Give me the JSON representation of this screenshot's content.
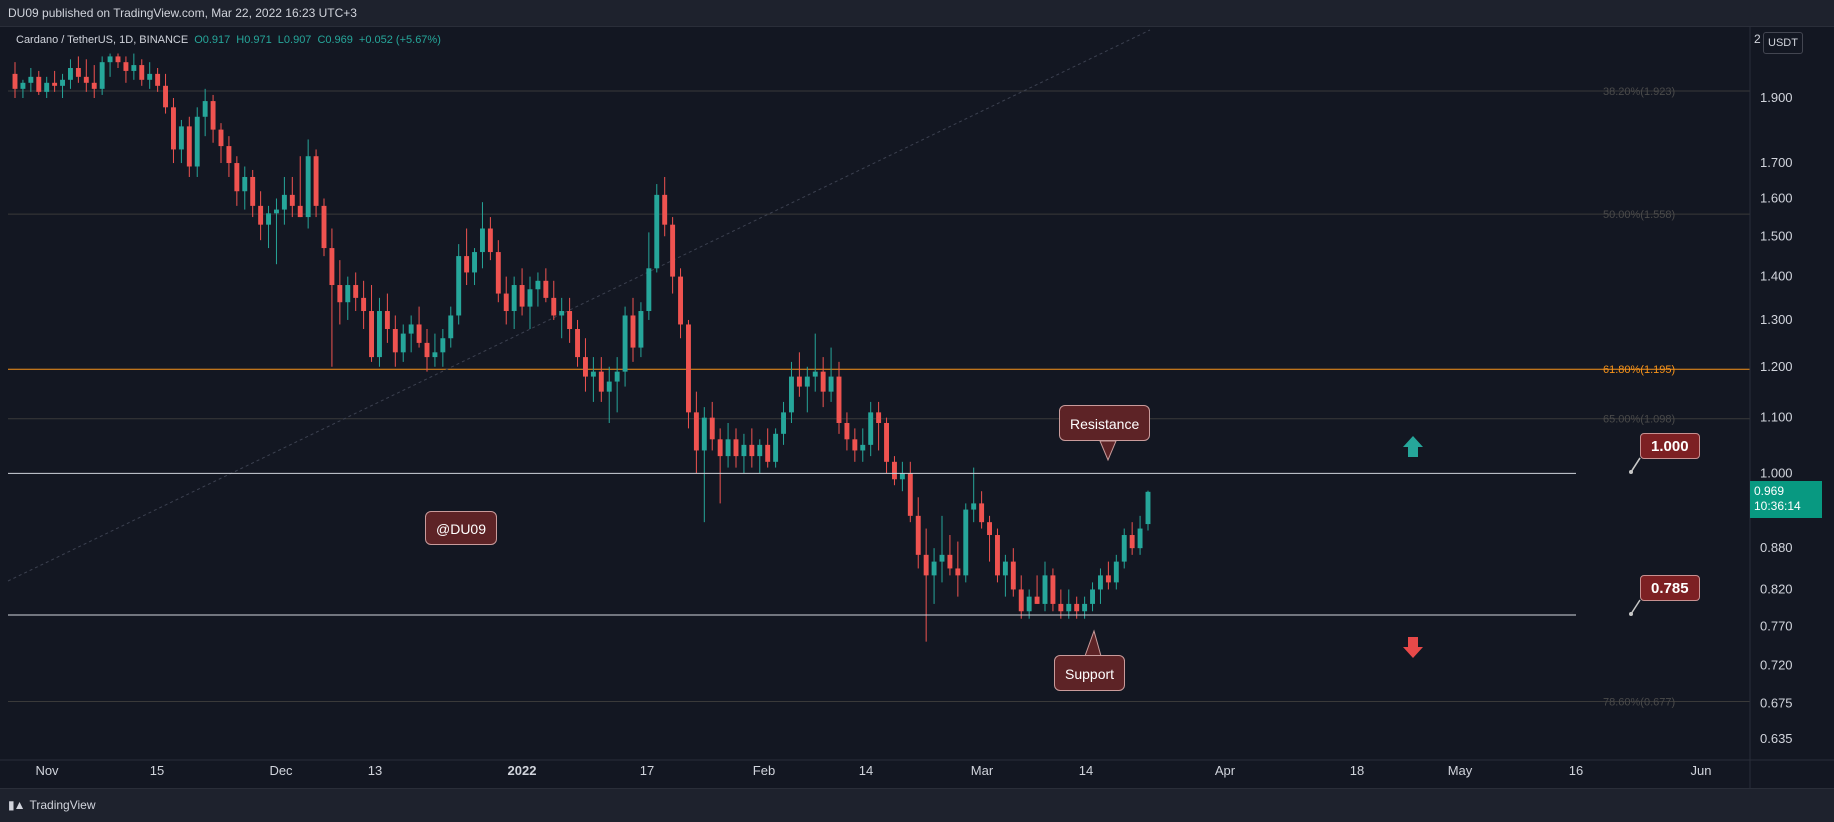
{
  "header": {
    "publish_line": "DU09 published on TradingView.com, Mar 22, 2022 16:23 UTC+3"
  },
  "legend": {
    "symbol": "Cardano / TetherUS, 1D, BINANCE",
    "open": "O0.917",
    "high": "H0.971",
    "low": "L0.907",
    "close": "C0.969",
    "change": "+0.052 (+5.67%)"
  },
  "axis": {
    "currency": "USDT",
    "corner_digit": "2"
  },
  "current_price": {
    "price": "0.969",
    "countdown": "10:36:14"
  },
  "annotations": {
    "resistance": "Resistance",
    "support": "Support",
    "watermark": "@DU09",
    "level_high": "1.000",
    "level_low": "0.785"
  },
  "footer": {
    "brand": "TradingView"
  },
  "colors": {
    "background": "#131722",
    "up": "#26a69a",
    "down": "#ef5350",
    "fib_618": "#f7931a",
    "level_line": "#d1d4dc"
  },
  "chart_data": {
    "type": "candlestick",
    "title": "",
    "x_tick_labels": [
      "Nov",
      "15",
      "Dec",
      "13",
      "2022",
      "17",
      "Feb",
      "14",
      "Mar",
      "14",
      "Apr",
      "18",
      "May",
      "16",
      "Jun"
    ],
    "y_tick_labels": [
      "1.900",
      "1.700",
      "1.600",
      "1.500",
      "1.400",
      "1.300",
      "1.200",
      "1.100",
      "1.000",
      "0.880",
      "0.820",
      "0.770",
      "0.720",
      "0.675",
      "0.635"
    ],
    "y_tick_values": [
      1.9,
      1.7,
      1.6,
      1.5,
      1.4,
      1.3,
      1.2,
      1.1,
      1.0,
      0.88,
      0.82,
      0.77,
      0.72,
      0.675,
      0.635
    ],
    "ylim": [
      0.61,
      2.05
    ],
    "y_scale": "log",
    "fib_levels": [
      {
        "label": "38.20%(1.923)",
        "value": 1.923
      },
      {
        "label": "50.00%(1.558)",
        "value": 1.558
      },
      {
        "label": "61.80%(1.195)",
        "value": 1.195
      },
      {
        "label": "65.00%(1.098)",
        "value": 1.098
      },
      {
        "label": "78.60%(0.677)",
        "value": 0.677
      }
    ],
    "horizontal_levels": [
      1.0,
      0.785
    ],
    "candles": [
      [
        1.98,
        2.02,
        1.9,
        1.93
      ],
      [
        1.93,
        1.96,
        1.9,
        1.95
      ],
      [
        1.95,
        2.0,
        1.92,
        1.97
      ],
      [
        1.97,
        1.99,
        1.91,
        1.92
      ],
      [
        1.92,
        1.97,
        1.9,
        1.95
      ],
      [
        1.95,
        1.99,
        1.92,
        1.94
      ],
      [
        1.94,
        1.98,
        1.9,
        1.96
      ],
      [
        1.96,
        2.03,
        1.93,
        2.0
      ],
      [
        2.0,
        2.04,
        1.95,
        1.97
      ],
      [
        1.97,
        2.03,
        1.92,
        1.95
      ],
      [
        1.95,
        2.01,
        1.9,
        1.93
      ],
      [
        1.93,
        2.04,
        1.91,
        2.02
      ],
      [
        2.02,
        2.05,
        1.97,
        2.04
      ],
      [
        2.04,
        2.05,
        2.0,
        2.02
      ],
      [
        2.02,
        2.04,
        1.95,
        1.99
      ],
      [
        1.99,
        2.05,
        1.96,
        2.01
      ],
      [
        2.01,
        2.03,
        1.94,
        1.96
      ],
      [
        1.96,
        2.02,
        1.93,
        1.98
      ],
      [
        1.98,
        2.0,
        1.92,
        1.94
      ],
      [
        1.94,
        1.98,
        1.85,
        1.87
      ],
      [
        1.87,
        1.9,
        1.7,
        1.74
      ],
      [
        1.74,
        1.83,
        1.7,
        1.81
      ],
      [
        1.81,
        1.84,
        1.66,
        1.69
      ],
      [
        1.69,
        1.87,
        1.66,
        1.84
      ],
      [
        1.84,
        1.93,
        1.78,
        1.89
      ],
      [
        1.89,
        1.91,
        1.76,
        1.8
      ],
      [
        1.8,
        1.82,
        1.7,
        1.75
      ],
      [
        1.75,
        1.78,
        1.66,
        1.7
      ],
      [
        1.7,
        1.72,
        1.58,
        1.62
      ],
      [
        1.62,
        1.69,
        1.57,
        1.66
      ],
      [
        1.66,
        1.68,
        1.55,
        1.58
      ],
      [
        1.58,
        1.62,
        1.49,
        1.53
      ],
      [
        1.53,
        1.58,
        1.47,
        1.56
      ],
      [
        1.56,
        1.6,
        1.43,
        1.57
      ],
      [
        1.57,
        1.66,
        1.53,
        1.61
      ],
      [
        1.61,
        1.66,
        1.55,
        1.58
      ],
      [
        1.58,
        1.72,
        1.55,
        1.55
      ],
      [
        1.55,
        1.77,
        1.52,
        1.72
      ],
      [
        1.72,
        1.74,
        1.55,
        1.58
      ],
      [
        1.58,
        1.6,
        1.45,
        1.47
      ],
      [
        1.47,
        1.52,
        1.2,
        1.38
      ],
      [
        1.38,
        1.44,
        1.29,
        1.34
      ],
      [
        1.34,
        1.4,
        1.3,
        1.38
      ],
      [
        1.38,
        1.41,
        1.32,
        1.35
      ],
      [
        1.35,
        1.39,
        1.28,
        1.32
      ],
      [
        1.32,
        1.38,
        1.21,
        1.22
      ],
      [
        1.22,
        1.35,
        1.2,
        1.32
      ],
      [
        1.32,
        1.36,
        1.25,
        1.28
      ],
      [
        1.28,
        1.31,
        1.2,
        1.23
      ],
      [
        1.23,
        1.29,
        1.21,
        1.27
      ],
      [
        1.27,
        1.31,
        1.23,
        1.29
      ],
      [
        1.29,
        1.33,
        1.24,
        1.25
      ],
      [
        1.25,
        1.28,
        1.19,
        1.22
      ],
      [
        1.22,
        1.27,
        1.2,
        1.23
      ],
      [
        1.23,
        1.28,
        1.2,
        1.26
      ],
      [
        1.26,
        1.33,
        1.24,
        1.31
      ],
      [
        1.31,
        1.48,
        1.29,
        1.45
      ],
      [
        1.45,
        1.52,
        1.38,
        1.41
      ],
      [
        1.41,
        1.47,
        1.38,
        1.46
      ],
      [
        1.46,
        1.59,
        1.42,
        1.52
      ],
      [
        1.52,
        1.55,
        1.44,
        1.46
      ],
      [
        1.46,
        1.49,
        1.34,
        1.36
      ],
      [
        1.36,
        1.4,
        1.29,
        1.32
      ],
      [
        1.32,
        1.4,
        1.28,
        1.38
      ],
      [
        1.38,
        1.42,
        1.31,
        1.33
      ],
      [
        1.33,
        1.4,
        1.28,
        1.37
      ],
      [
        1.37,
        1.41,
        1.33,
        1.39
      ],
      [
        1.39,
        1.42,
        1.34,
        1.35
      ],
      [
        1.35,
        1.39,
        1.3,
        1.31
      ],
      [
        1.31,
        1.35,
        1.26,
        1.32
      ],
      [
        1.32,
        1.35,
        1.25,
        1.28
      ],
      [
        1.28,
        1.3,
        1.2,
        1.22
      ],
      [
        1.22,
        1.26,
        1.15,
        1.18
      ],
      [
        1.18,
        1.22,
        1.13,
        1.19
      ],
      [
        1.19,
        1.22,
        1.13,
        1.15
      ],
      [
        1.15,
        1.2,
        1.09,
        1.17
      ],
      [
        1.17,
        1.22,
        1.11,
        1.19
      ],
      [
        1.19,
        1.33,
        1.16,
        1.31
      ],
      [
        1.31,
        1.35,
        1.21,
        1.24
      ],
      [
        1.24,
        1.34,
        1.22,
        1.32
      ],
      [
        1.32,
        1.51,
        1.3,
        1.42
      ],
      [
        1.42,
        1.64,
        1.41,
        1.61
      ],
      [
        1.61,
        1.66,
        1.5,
        1.53
      ],
      [
        1.53,
        1.55,
        1.36,
        1.4
      ],
      [
        1.4,
        1.42,
        1.26,
        1.29
      ],
      [
        1.29,
        1.3,
        1.08,
        1.11
      ],
      [
        1.11,
        1.15,
        1.0,
        1.04
      ],
      [
        1.04,
        1.12,
        0.92,
        1.1
      ],
      [
        1.1,
        1.13,
        1.04,
        1.06
      ],
      [
        1.06,
        1.08,
        0.95,
        1.03
      ],
      [
        1.03,
        1.09,
        1.01,
        1.06
      ],
      [
        1.06,
        1.08,
        1.01,
        1.03
      ],
      [
        1.03,
        1.07,
        1.0,
        1.05
      ],
      [
        1.05,
        1.08,
        1.01,
        1.03
      ],
      [
        1.03,
        1.06,
        1.0,
        1.05
      ],
      [
        1.05,
        1.08,
        1.01,
        1.02
      ],
      [
        1.02,
        1.08,
        1.01,
        1.07
      ],
      [
        1.07,
        1.13,
        1.05,
        1.11
      ],
      [
        1.11,
        1.21,
        1.09,
        1.18
      ],
      [
        1.18,
        1.23,
        1.14,
        1.16
      ],
      [
        1.16,
        1.2,
        1.11,
        1.18
      ],
      [
        1.18,
        1.27,
        1.15,
        1.19
      ],
      [
        1.19,
        1.22,
        1.12,
        1.15
      ],
      [
        1.15,
        1.24,
        1.13,
        1.18
      ],
      [
        1.18,
        1.21,
        1.07,
        1.09
      ],
      [
        1.09,
        1.11,
        1.04,
        1.06
      ],
      [
        1.06,
        1.08,
        1.02,
        1.04
      ],
      [
        1.04,
        1.08,
        1.02,
        1.05
      ],
      [
        1.05,
        1.13,
        1.03,
        1.11
      ],
      [
        1.11,
        1.13,
        1.04,
        1.09
      ],
      [
        1.09,
        1.1,
        1.0,
        1.02
      ],
      [
        1.02,
        1.03,
        0.98,
        0.99
      ],
      [
        0.99,
        1.02,
        0.97,
        1.0
      ],
      [
        1.0,
        1.02,
        0.92,
        0.93
      ],
      [
        0.93,
        0.96,
        0.85,
        0.87
      ],
      [
        0.87,
        0.91,
        0.75,
        0.84
      ],
      [
        0.84,
        0.88,
        0.8,
        0.86
      ],
      [
        0.86,
        0.93,
        0.83,
        0.87
      ],
      [
        0.87,
        0.9,
        0.84,
        0.85
      ],
      [
        0.85,
        0.89,
        0.81,
        0.84
      ],
      [
        0.84,
        0.95,
        0.83,
        0.94
      ],
      [
        0.94,
        1.01,
        0.92,
        0.95
      ],
      [
        0.95,
        0.97,
        0.91,
        0.92
      ],
      [
        0.92,
        0.93,
        0.86,
        0.9
      ],
      [
        0.9,
        0.91,
        0.83,
        0.84
      ],
      [
        0.84,
        0.87,
        0.81,
        0.86
      ],
      [
        0.86,
        0.88,
        0.81,
        0.82
      ],
      [
        0.82,
        0.84,
        0.78,
        0.79
      ],
      [
        0.79,
        0.82,
        0.78,
        0.81
      ],
      [
        0.81,
        0.84,
        0.8,
        0.8
      ],
      [
        0.8,
        0.86,
        0.79,
        0.84
      ],
      [
        0.84,
        0.85,
        0.79,
        0.8
      ],
      [
        0.8,
        0.82,
        0.78,
        0.79
      ],
      [
        0.79,
        0.82,
        0.78,
        0.8
      ],
      [
        0.8,
        0.81,
        0.78,
        0.79
      ],
      [
        0.79,
        0.81,
        0.78,
        0.8
      ],
      [
        0.8,
        0.83,
        0.79,
        0.82
      ],
      [
        0.82,
        0.85,
        0.8,
        0.84
      ],
      [
        0.84,
        0.86,
        0.82,
        0.83
      ],
      [
        0.83,
        0.87,
        0.82,
        0.86
      ],
      [
        0.86,
        0.91,
        0.85,
        0.9
      ],
      [
        0.9,
        0.92,
        0.87,
        0.88
      ],
      [
        0.88,
        0.93,
        0.87,
        0.91
      ],
      [
        0.917,
        0.971,
        0.907,
        0.969
      ]
    ]
  }
}
